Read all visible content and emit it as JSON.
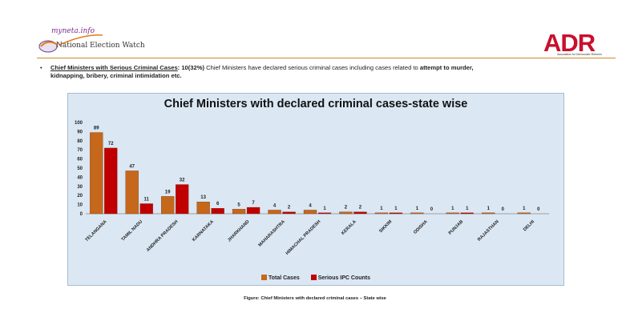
{
  "header": {
    "logo_left_script": "myneta.info",
    "logo_left_text": "National Election Watch",
    "logo_right_text": "ADR",
    "logo_right_sub": "Association for Democratic Reforms"
  },
  "bullet": {
    "heading": "Chief Ministers with Serious Criminal Cases",
    "colon": ":",
    "count": " 10(32%)",
    "text1": " Chief Ministers have declared serious criminal cases including cases related to ",
    "bold1": "attempt to murder,",
    "bold2": "kidnapping, bribery, criminal intimidation etc."
  },
  "chart_data": {
    "type": "bar",
    "title": "Chief Ministers with declared criminal cases-state wise",
    "xlabel": "",
    "ylabel": "",
    "ylim": [
      0,
      100
    ],
    "yticks": [
      "0",
      "10",
      "20",
      "30",
      "40",
      "50",
      "60",
      "70",
      "80",
      "90",
      "100"
    ],
    "categories": [
      "TELANGANA",
      "TAMIL NADU",
      "ANDHRA PRADESH",
      "KARNATAKA",
      "JHARKHAND",
      "MAHARASHTRA",
      "HIMACHAL PRADESH",
      "KERALA",
      "SIKKIM",
      "ODISHA",
      "PUNJAB",
      "RAJASTHAN",
      "DELHI"
    ],
    "series": [
      {
        "name": "Total Cases",
        "color": "#c5681c",
        "values": [
          89,
          47,
          19,
          13,
          5,
          4,
          4,
          2,
          1,
          1,
          1,
          1,
          1
        ]
      },
      {
        "name": "Serious IPC Counts",
        "color": "#c00000",
        "values": [
          72,
          11,
          32,
          6,
          7,
          2,
          1,
          2,
          1,
          0,
          1,
          0,
          0
        ]
      }
    ],
    "grid": false,
    "legend_position": "bottom"
  },
  "caption": "Figure: Chief Ministers with declared criminal cases – State wise"
}
